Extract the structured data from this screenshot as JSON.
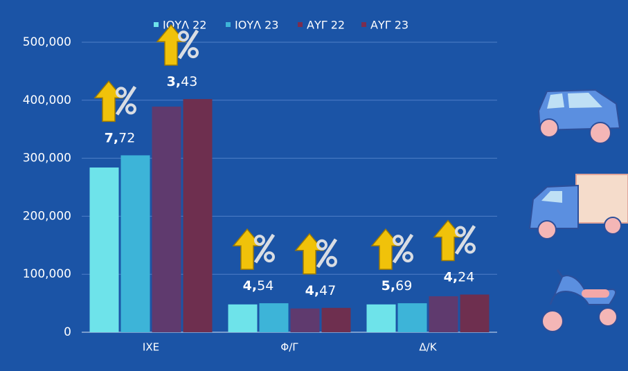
{
  "chart_data": {
    "type": "bar",
    "categories": [
      "ΙΧΕ",
      "Φ/Γ",
      "Δ/Κ"
    ],
    "series": [
      {
        "name": "ΙΟΥΛ 22",
        "color": "#6ee3ea",
        "values": [
          284000,
          48000,
          48000
        ]
      },
      {
        "name": "ΙΟΥΛ 23",
        "color": "#3db4d8",
        "values": [
          305000,
          50000,
          50000
        ]
      },
      {
        "name": "ΑΥΓ 22",
        "color": "#5f3a6e",
        "values": [
          389000,
          41000,
          62000
        ]
      },
      {
        "name": "ΑΥΓ 23",
        "color": "#6e2f4f",
        "values": [
          402000,
          42000,
          65000
        ]
      }
    ],
    "annotations": [
      [
        "7,72",
        "3,43"
      ],
      [
        "4,54",
        "4,47"
      ],
      [
        "5,69",
        "4,24"
      ]
    ],
    "ylim": [
      0,
      500000
    ],
    "yticks": [
      0,
      {
        "value": 100000,
        "label": "100,000"
      },
      {
        "value": 200000,
        "label": "200,000"
      },
      {
        "value": 300000,
        "label": "300,000"
      },
      {
        "value": 400000,
        "label": "400,000"
      },
      {
        "value": 500000,
        "label": "500,000"
      }
    ],
    "grid": true
  }
}
